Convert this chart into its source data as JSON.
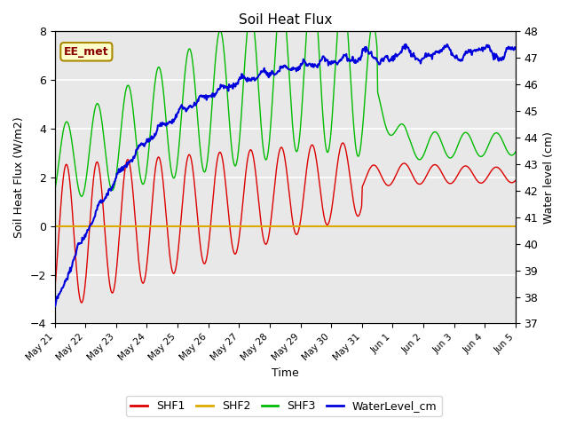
{
  "title": "Soil Heat Flux",
  "ylabel_left": "Soil Heat Flux (W/m2)",
  "ylabel_right": "Water level (cm)",
  "xlabel": "Time",
  "ylim_left": [
    -4,
    8
  ],
  "ylim_right": [
    37.0,
    48.0
  ],
  "yticks_left": [
    -4,
    -2,
    0,
    2,
    4,
    6,
    8
  ],
  "yticks_right": [
    37.0,
    38.0,
    39.0,
    40.0,
    41.0,
    42.0,
    43.0,
    44.0,
    45.0,
    46.0,
    47.0,
    48.0
  ],
  "background_color": "#e8e8e8",
  "line_colors": {
    "SHF1": "#dd0000",
    "SHF2": "#ddaa00",
    "SHF3": "#00bb00",
    "WaterLevel_cm": "#0000dd"
  },
  "annotation_box": "EE_met",
  "annotation_box_facecolor": "#ffffcc",
  "annotation_box_edgecolor": "#aa8800",
  "xtick_labels": [
    "May 21",
    "May 22",
    "May 23",
    "May 24",
    "May 25",
    "May 26",
    "May 27",
    "May 28",
    "May 29",
    "May 30",
    "May 31",
    "Jun 1",
    "Jun 2",
    "Jun 3",
    "Jun 4",
    "Jun 5"
  ]
}
